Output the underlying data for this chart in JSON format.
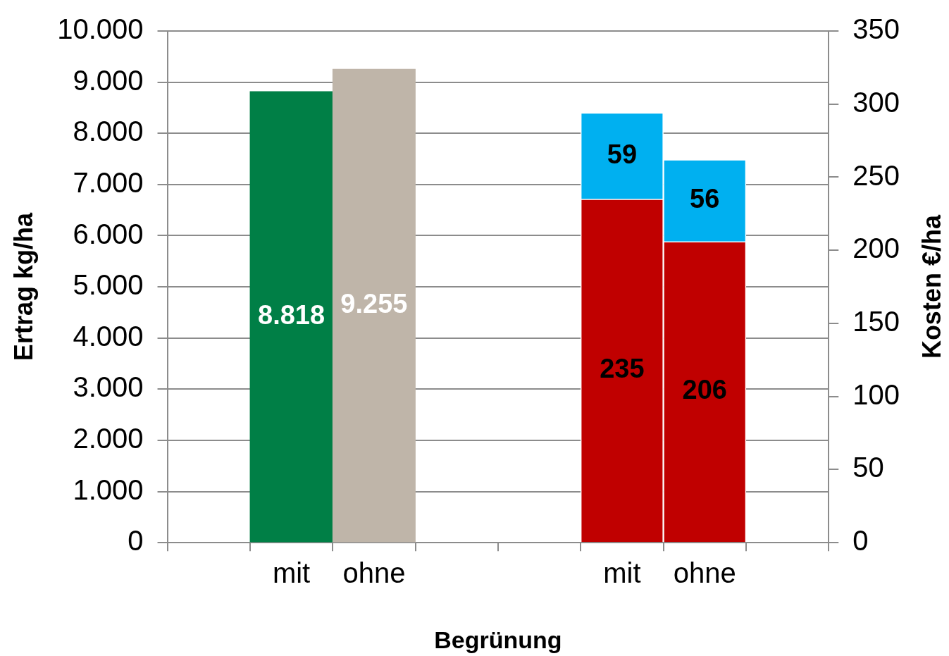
{
  "chart_data": {
    "type": "bar",
    "xlabel": "Begrünung",
    "ylabel": "Ertrag kg/ha",
    "y2label": "Kosten €/ha",
    "categories": [
      null,
      "mit",
      "ohne",
      null,
      null,
      "mit",
      "ohne",
      null
    ],
    "series": [
      {
        "colors": [
          null,
          "#007f46",
          "#bfb5a9",
          null,
          null,
          null,
          null,
          null
        ],
        "values": [
          null,
          8818,
          9255,
          null,
          null,
          null,
          null,
          null
        ],
        "value_labels": [
          null,
          "8.818",
          "9.255",
          null,
          null,
          null,
          null,
          null
        ]
      },
      {
        "axis": "y2",
        "color": "#c00000",
        "values": [
          null,
          null,
          null,
          null,
          null,
          235,
          206,
          null
        ],
        "value_labels": [
          null,
          null,
          null,
          null,
          null,
          "235",
          "206",
          null
        ]
      },
      {
        "axis": "y2",
        "color": "#00b0f0",
        "values": [
          null,
          null,
          null,
          null,
          null,
          59,
          56,
          null
        ],
        "value_labels": [
          null,
          null,
          null,
          null,
          null,
          "59",
          "56",
          null
        ]
      }
    ],
    "stacked": true,
    "grid": "y",
    "ylim": [
      0,
      10000
    ],
    "yticks": [
      {
        "value": 0,
        "label": "0"
      },
      {
        "value": 1000,
        "label": "1.000"
      },
      {
        "value": 2000,
        "label": "2.000"
      },
      {
        "value": 3000,
        "label": "3.000"
      },
      {
        "value": 4000,
        "label": "4.000"
      },
      {
        "value": 5000,
        "label": "5.000"
      },
      {
        "value": 6000,
        "label": "6.000"
      },
      {
        "value": 7000,
        "label": "7.000"
      },
      {
        "value": 8000,
        "label": "8.000"
      },
      {
        "value": 9000,
        "label": "9.000"
      },
      {
        "value": 10000,
        "label": "10.000"
      }
    ],
    "y2lim": [
      0,
      350
    ],
    "y2ticks": [
      0,
      50,
      100,
      150,
      200,
      250,
      300,
      350
    ]
  }
}
